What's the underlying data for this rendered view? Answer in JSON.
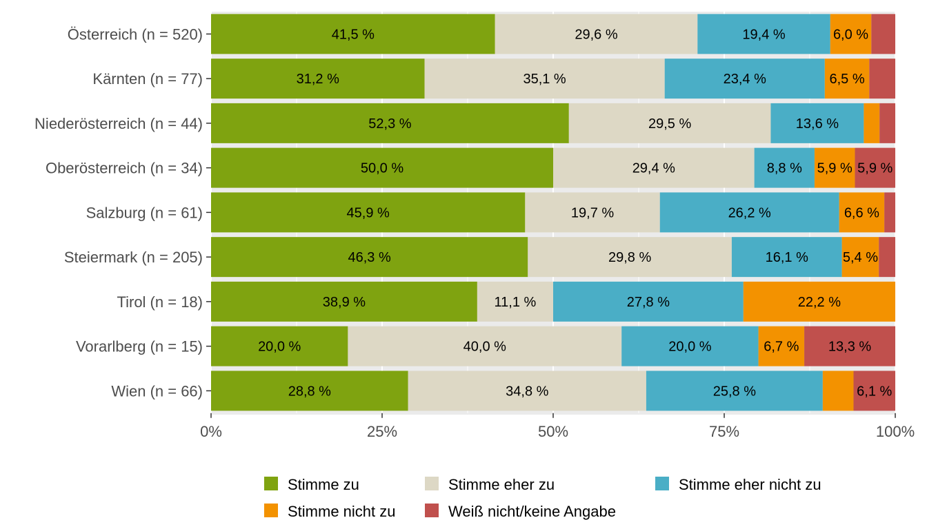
{
  "chart_data": {
    "type": "bar",
    "orientation": "horizontal",
    "stacked": "percent",
    "categories": [
      "Österreich (n = 520)",
      "Kärnten (n = 77)",
      "Niederösterreich (n = 44)",
      "Oberösterreich (n = 34)",
      "Salzburg (n = 61)",
      "Steiermark (n = 205)",
      "Tirol (n = 18)",
      "Vorarlberg (n = 15)",
      "Wien (n = 66)"
    ],
    "series": [
      {
        "name": "Stimme zu",
        "color": "#7fa310",
        "values": [
          41.5,
          31.2,
          52.3,
          50.0,
          45.9,
          46.3,
          38.9,
          20.0,
          28.8
        ],
        "labels": [
          "41,5 %",
          "31,2 %",
          "52,3 %",
          "50,0 %",
          "45,9 %",
          "46,3 %",
          "38,9 %",
          "20,0 %",
          "28,8 %"
        ]
      },
      {
        "name": "Stimme eher zu",
        "color": "#ddd8c5",
        "values": [
          29.6,
          35.1,
          29.5,
          29.4,
          19.7,
          29.8,
          11.1,
          40.0,
          34.8
        ],
        "labels": [
          "29,6 %",
          "35,1 %",
          "29,5 %",
          "29,4 %",
          "19,7 %",
          "29,8 %",
          "11,1 %",
          "40,0 %",
          "34,8 %"
        ]
      },
      {
        "name": "Stimme eher nicht zu",
        "color": "#4aaec6",
        "values": [
          19.4,
          23.4,
          13.6,
          8.8,
          26.2,
          16.1,
          27.8,
          20.0,
          25.8
        ],
        "labels": [
          "19,4 %",
          "23,4 %",
          "13,6 %",
          "8,8 %",
          "26,2 %",
          "16,1 %",
          "27,8 %",
          "20,0 %",
          "25,8 %"
        ]
      },
      {
        "name": "Stimme nicht zu",
        "color": "#f39200",
        "values": [
          6.0,
          6.5,
          2.3,
          5.9,
          6.6,
          5.4,
          22.2,
          6.7,
          4.5
        ],
        "labels": [
          "6,0 %",
          "6,5 %",
          "",
          "5,9 %",
          "6,6 %",
          "5,4 %",
          "22,2 %",
          "6,7 %",
          ""
        ]
      },
      {
        "name": "Weiß nicht/keine Angabe",
        "color": "#c0504d",
        "values": [
          3.5,
          3.8,
          2.3,
          5.9,
          1.6,
          2.4,
          0.0,
          13.3,
          6.1
        ],
        "labels": [
          "",
          "",
          "",
          "5,9 %",
          "",
          "",
          "",
          "13,3 %",
          "6,1 %"
        ]
      }
    ],
    "xlim": [
      0,
      100
    ],
    "x_ticks": [
      "0%",
      "25%",
      "50%",
      "75%",
      "100%"
    ],
    "grid": true,
    "legend_position": "bottom",
    "title": "",
    "xlabel": "",
    "ylabel": ""
  }
}
